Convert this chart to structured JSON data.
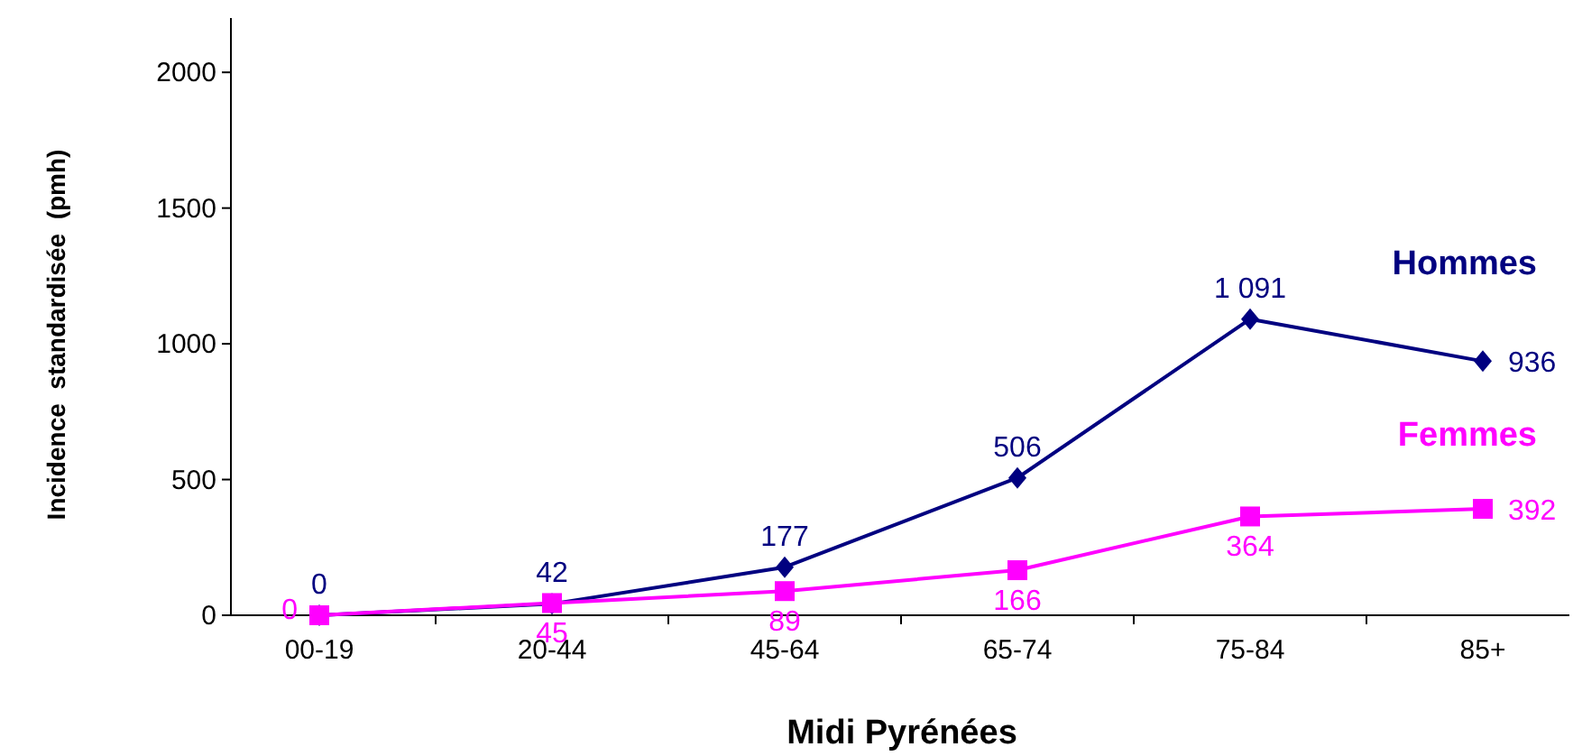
{
  "chart_data": {
    "type": "line",
    "xlabel": "Midi Pyrénées",
    "ylabel": "Incidence  standardisée  (pmh)",
    "categories": [
      "00-19",
      "20-44",
      "45-64",
      "65-74",
      "75-84",
      "85+"
    ],
    "ylim": [
      0,
      2200
    ],
    "yticks": [
      0,
      500,
      1000,
      1500,
      2000
    ],
    "grid": false,
    "series": [
      {
        "name": "Hommes",
        "color": "#000080",
        "marker": "diamond",
        "values": [
          0,
          42,
          177,
          506,
          1091,
          936
        ],
        "value_labels": [
          "0",
          "42",
          "177",
          "506",
          "1 091",
          "936"
        ]
      },
      {
        "name": "Femmes",
        "color": "#ff00ff",
        "marker": "square",
        "values": [
          0,
          45,
          89,
          166,
          364,
          392
        ],
        "value_labels": [
          "0",
          "45",
          "89",
          "166",
          "364",
          "392"
        ]
      }
    ]
  }
}
